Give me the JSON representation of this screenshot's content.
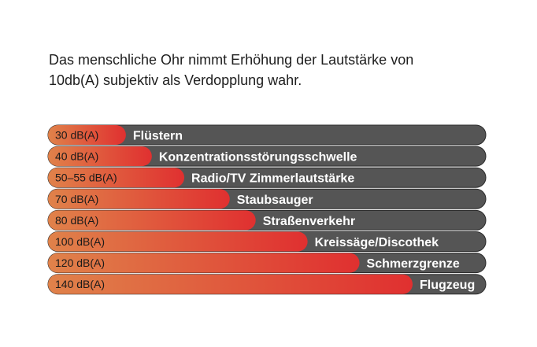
{
  "intro": {
    "line1": "Das menschliche Ohr nimmt Erhöhung der Lautstärke von",
    "line2": "10db(A) subjektiv als Verdopplung wahr."
  },
  "colors": {
    "track": "#555555",
    "fill_start": "#e0824a",
    "fill_end": "#e03030",
    "label_text": "#ffffff",
    "value_text": "#1a1a1a"
  },
  "chart_data": {
    "type": "bar",
    "orientation": "horizontal",
    "unit": "dB(A)",
    "xlim": [
      0,
      140
    ],
    "grid": false,
    "legend": "none",
    "bars": [
      {
        "value_label": "30 dB(A)",
        "value": 30,
        "name": "Flüstern"
      },
      {
        "value_label": "40 dB(A)",
        "value": 40,
        "name": "Konzentrationsstörungsschwelle"
      },
      {
        "value_label": "50–55 dB(A)",
        "value": 52.5,
        "name": "Radio/TV Zimmerlautstärke"
      },
      {
        "value_label": "70 dB(A)",
        "value": 70,
        "name": "Staubsauger"
      },
      {
        "value_label": "80 dB(A)",
        "value": 80,
        "name": "Straßenverkehr"
      },
      {
        "value_label": "100 dB(A)",
        "value": 100,
        "name": "Kreissäge/Discothek"
      },
      {
        "value_label": "120 dB(A)",
        "value": 120,
        "name": "Schmerzgrenze"
      },
      {
        "value_label": "140 dB(A)",
        "value": 140,
        "name": "Flugzeug"
      }
    ]
  }
}
